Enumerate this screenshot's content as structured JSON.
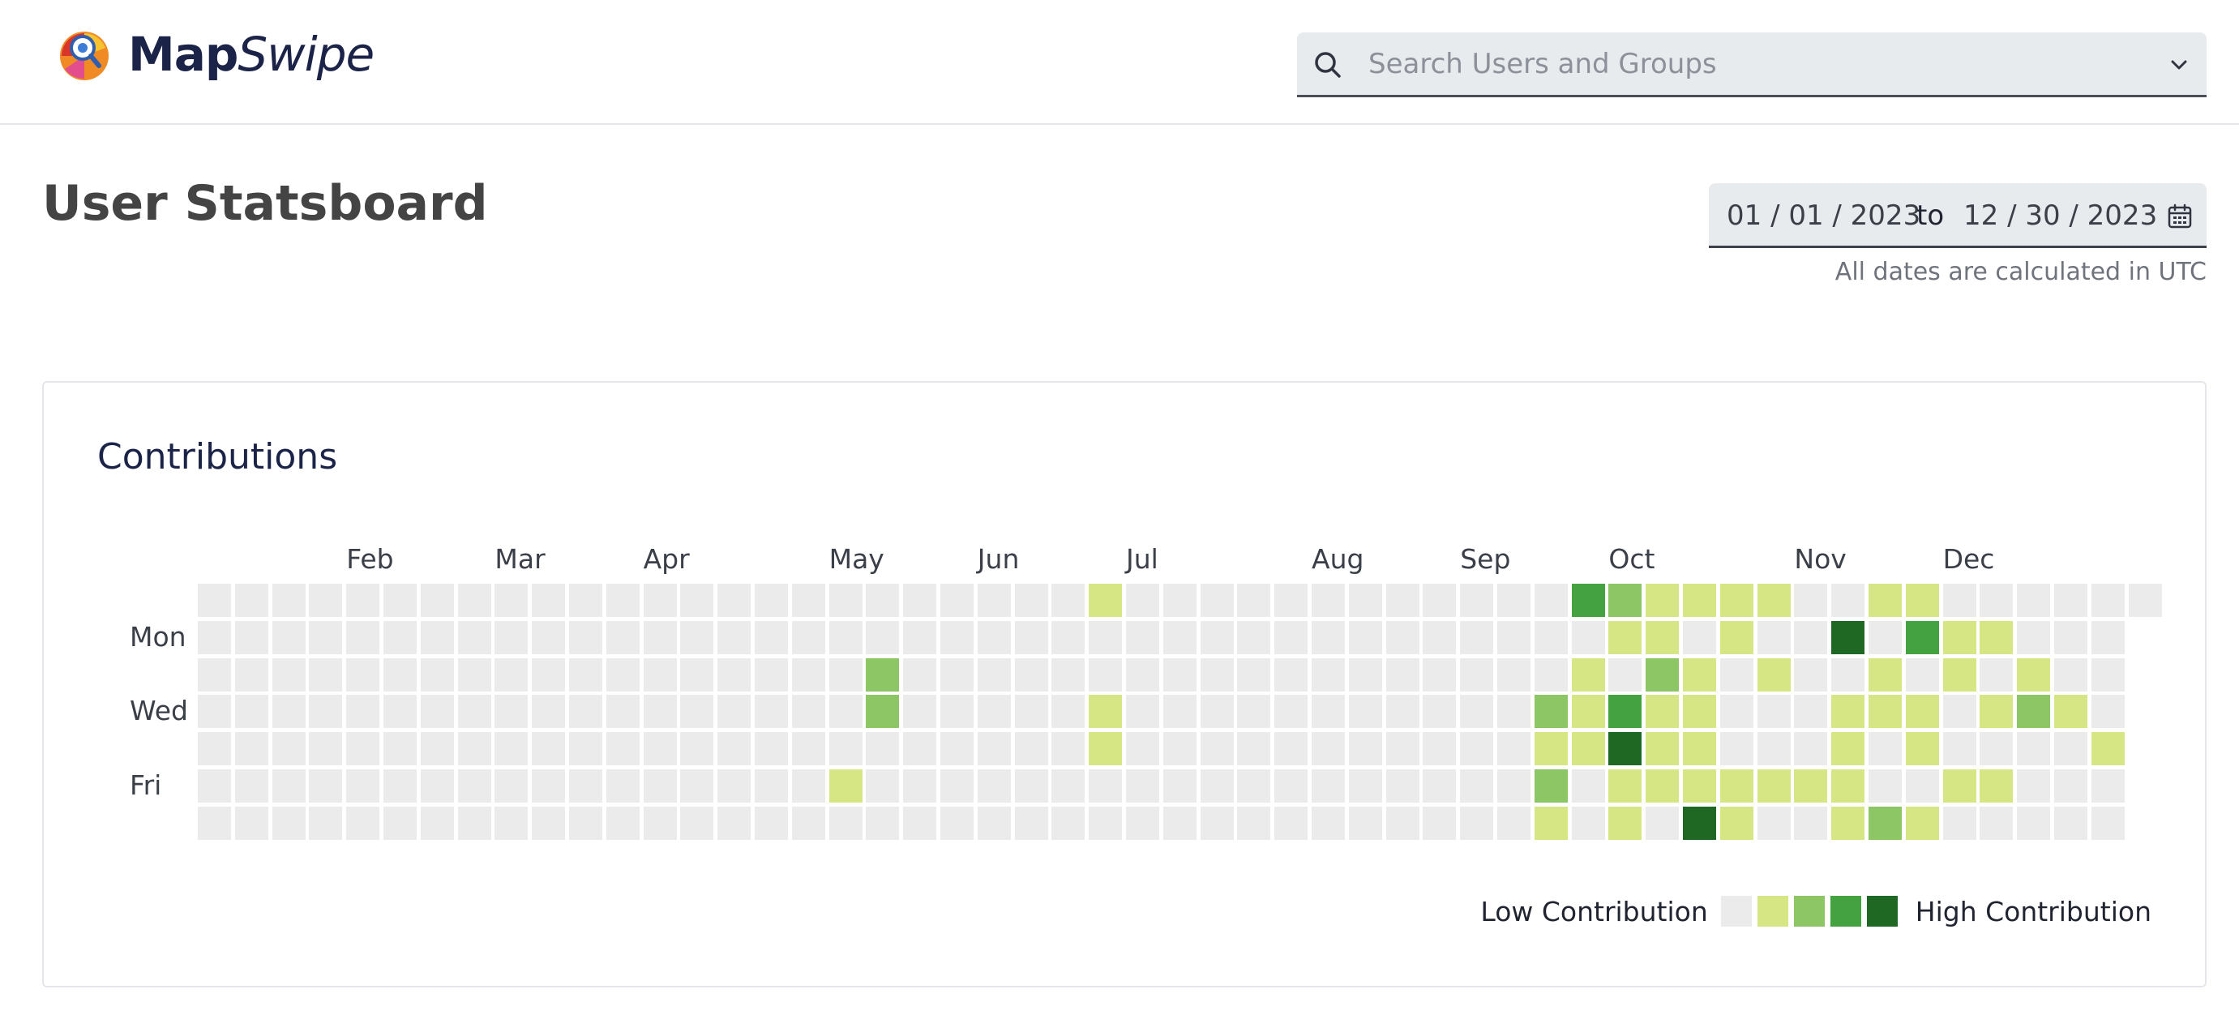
{
  "header": {
    "logo_text_bold": "Map",
    "logo_text_light": "Swipe",
    "search_placeholder": "Search Users and Groups",
    "search_icon": "search-icon",
    "dropdown_icon": "chevron-down-icon"
  },
  "page": {
    "title": "User Statsboard",
    "date_start": "01 / 01 / 2023",
    "date_to": "to",
    "date_end": "12 / 30 / 2023",
    "calendar_icon": "calendar-icon",
    "utc_note": "All dates are calculated in UTC"
  },
  "contributions": {
    "title": "Contributions",
    "legend_low": "Low Contribution",
    "legend_high": "High Contribution",
    "colors": [
      "#ebebeb",
      "#d6e685",
      "#8cc665",
      "#44a340",
      "#1e6823"
    ]
  },
  "chart_data": {
    "type": "heatmap",
    "weeks": 53,
    "first_date": "2023-01-01",
    "month_labels": [
      {
        "label": "Feb",
        "week": 4
      },
      {
        "label": "Mar",
        "week": 8
      },
      {
        "label": "Apr",
        "week": 12
      },
      {
        "label": "May",
        "week": 17
      },
      {
        "label": "Jun",
        "week": 21
      },
      {
        "label": "Jul",
        "week": 25
      },
      {
        "label": "Aug",
        "week": 30
      },
      {
        "label": "Sep",
        "week": 34
      },
      {
        "label": "Oct",
        "week": 38
      },
      {
        "label": "Nov",
        "week": 43
      },
      {
        "label": "Dec",
        "week": 47
      }
    ],
    "day_labels": [
      {
        "label": "Mon",
        "day": 1
      },
      {
        "label": "Wed",
        "day": 3
      },
      {
        "label": "Fri",
        "day": 5
      }
    ],
    "active_cells": [
      [
        17,
        5,
        1
      ],
      [
        18,
        2,
        2
      ],
      [
        18,
        3,
        2
      ],
      [
        24,
        0,
        1
      ],
      [
        24,
        3,
        1
      ],
      [
        24,
        4,
        1
      ],
      [
        36,
        3,
        2
      ],
      [
        36,
        4,
        1
      ],
      [
        36,
        5,
        2
      ],
      [
        36,
        6,
        1
      ],
      [
        37,
        0,
        3
      ],
      [
        37,
        2,
        1
      ],
      [
        37,
        3,
        1
      ],
      [
        37,
        4,
        1
      ],
      [
        38,
        0,
        2
      ],
      [
        38,
        1,
        1
      ],
      [
        38,
        3,
        3
      ],
      [
        38,
        4,
        4
      ],
      [
        38,
        5,
        1
      ],
      [
        38,
        6,
        1
      ],
      [
        39,
        0,
        1
      ],
      [
        39,
        1,
        1
      ],
      [
        39,
        2,
        2
      ],
      [
        39,
        3,
        1
      ],
      [
        39,
        4,
        1
      ],
      [
        39,
        5,
        1
      ],
      [
        40,
        0,
        1
      ],
      [
        40,
        2,
        1
      ],
      [
        40,
        3,
        1
      ],
      [
        40,
        4,
        1
      ],
      [
        40,
        5,
        1
      ],
      [
        40,
        6,
        4
      ],
      [
        41,
        0,
        1
      ],
      [
        41,
        1,
        1
      ],
      [
        41,
        5,
        1
      ],
      [
        41,
        6,
        1
      ],
      [
        42,
        0,
        1
      ],
      [
        42,
        2,
        1
      ],
      [
        42,
        5,
        1
      ],
      [
        43,
        5,
        1
      ],
      [
        44,
        1,
        4
      ],
      [
        44,
        3,
        1
      ],
      [
        44,
        4,
        1
      ],
      [
        44,
        5,
        1
      ],
      [
        44,
        6,
        1
      ],
      [
        45,
        0,
        1
      ],
      [
        45,
        2,
        1
      ],
      [
        45,
        3,
        1
      ],
      [
        45,
        6,
        2
      ],
      [
        46,
        0,
        1
      ],
      [
        46,
        1,
        3
      ],
      [
        46,
        3,
        1
      ],
      [
        46,
        4,
        1
      ],
      [
        46,
        6,
        1
      ],
      [
        47,
        1,
        1
      ],
      [
        47,
        2,
        1
      ],
      [
        47,
        5,
        1
      ],
      [
        48,
        1,
        1
      ],
      [
        48,
        3,
        1
      ],
      [
        48,
        5,
        1
      ],
      [
        49,
        2,
        1
      ],
      [
        49,
        3,
        2
      ],
      [
        50,
        3,
        1
      ],
      [
        51,
        4,
        1
      ]
    ]
  }
}
